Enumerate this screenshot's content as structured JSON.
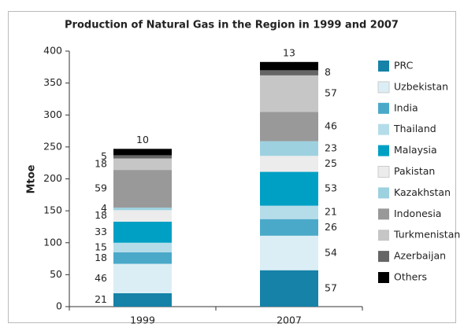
{
  "chart_data": {
    "type": "stacked-bar",
    "title": "Production of Natural Gas in the Region in 1999 and 2007",
    "y_label": "Mtoe",
    "categories": [
      "1999",
      "2007"
    ],
    "ylim": [
      0,
      400
    ],
    "yticks": [
      0,
      50,
      100,
      150,
      200,
      250,
      300,
      350,
      400
    ],
    "legend": "right",
    "series": [
      {
        "name": "PRC",
        "color": "#1682a8",
        "values": [
          21,
          57
        ]
      },
      {
        "name": "Uzbekistan",
        "color": "#dceef5",
        "values": [
          46,
          54
        ]
      },
      {
        "name": "India",
        "color": "#4aa9c9",
        "values": [
          18,
          26
        ]
      },
      {
        "name": "Thailand",
        "color": "#b5dde9",
        "values": [
          15,
          21
        ]
      },
      {
        "name": "Malaysia",
        "color": "#00a0c4",
        "values": [
          33,
          53
        ]
      },
      {
        "name": "Pakistan",
        "color": "#ececec",
        "values": [
          18,
          25
        ]
      },
      {
        "name": "Kazakhstan",
        "color": "#9dd1e0",
        "values": [
          4,
          23
        ]
      },
      {
        "name": "Indonesia",
        "color": "#999999",
        "values": [
          59,
          46
        ]
      },
      {
        "name": "Turkmenistan",
        "color": "#c6c6c6",
        "values": [
          18,
          57
        ]
      },
      {
        "name": "Azerbaijan",
        "color": "#666666",
        "values": [
          5,
          8
        ]
      },
      {
        "name": "Others",
        "color": "#000000",
        "values": [
          10,
          13
        ]
      }
    ]
  }
}
